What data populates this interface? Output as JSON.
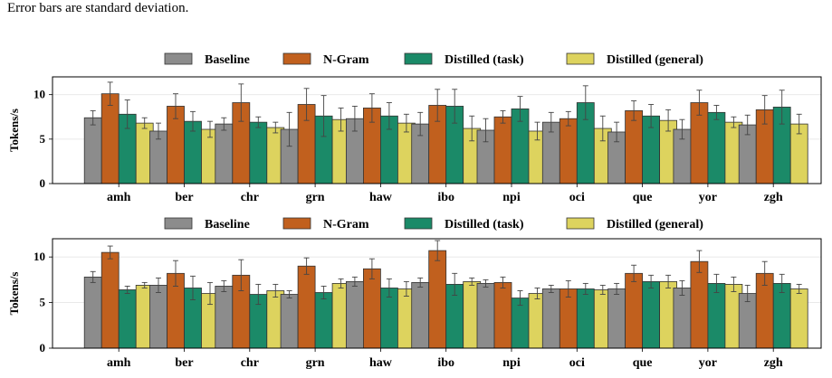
{
  "caption": "Error bars are standard deviation.",
  "colors": {
    "Baseline": "#8c8c8c",
    "N-Gram": "#c1601e",
    "Distilled (task)": "#1b8a68",
    "Distilled (general)": "#ddd35e"
  },
  "chart_data": [
    {
      "type": "bar",
      "ylabel": "Tokens/s",
      "ylim": [
        0,
        12
      ],
      "yticks": [
        0,
        5,
        10
      ],
      "grid": true,
      "legend_position": "top-center",
      "categories": [
        "amh",
        "ber",
        "chr",
        "grn",
        "haw",
        "ibo",
        "npi",
        "oci",
        "que",
        "yor",
        "zgh"
      ],
      "series": [
        {
          "name": "Baseline",
          "values": [
            7.4,
            5.9,
            6.7,
            6.1,
            7.3,
            6.7,
            6.0,
            6.9,
            5.8,
            6.1,
            6.6
          ],
          "errors": [
            0.8,
            0.9,
            0.7,
            1.9,
            1.4,
            1.3,
            1.3,
            1.1,
            1.1,
            1.1,
            1.1
          ]
        },
        {
          "name": "N-Gram",
          "values": [
            10.1,
            8.7,
            9.1,
            8.9,
            8.5,
            8.8,
            7.5,
            7.3,
            8.2,
            9.1,
            8.3
          ],
          "errors": [
            1.3,
            1.4,
            2.1,
            1.8,
            1.6,
            1.8,
            0.7,
            0.8,
            1.1,
            1.4,
            1.6
          ]
        },
        {
          "name": "Distilled (task)",
          "values": [
            7.8,
            7.0,
            6.9,
            7.6,
            7.6,
            8.7,
            8.4,
            9.1,
            7.6,
            8.0,
            8.6
          ],
          "errors": [
            1.6,
            1.1,
            0.6,
            2.3,
            1.5,
            1.9,
            1.4,
            1.9,
            1.3,
            0.8,
            1.9
          ]
        },
        {
          "name": "Distilled (general)",
          "values": [
            6.8,
            6.1,
            6.3,
            7.2,
            6.8,
            6.2,
            5.9,
            6.2,
            7.1,
            6.9,
            6.7
          ],
          "errors": [
            0.6,
            0.9,
            0.6,
            1.3,
            1.0,
            1.4,
            1.0,
            1.4,
            1.2,
            0.6,
            1.1
          ]
        }
      ]
    },
    {
      "type": "bar",
      "ylabel": "Tokens/s",
      "ylim": [
        0,
        12
      ],
      "yticks": [
        0,
        5,
        10
      ],
      "grid": true,
      "legend_position": "top-center",
      "categories": [
        "amh",
        "ber",
        "chr",
        "grn",
        "haw",
        "ibo",
        "npi",
        "oci",
        "que",
        "yor",
        "zgh"
      ],
      "series": [
        {
          "name": "Baseline",
          "values": [
            7.8,
            6.9,
            6.8,
            5.9,
            7.3,
            7.2,
            7.1,
            6.5,
            6.5,
            6.6,
            6.0
          ],
          "errors": [
            0.6,
            0.8,
            0.6,
            0.4,
            0.5,
            0.5,
            0.4,
            0.4,
            0.6,
            0.8,
            0.9
          ]
        },
        {
          "name": "N-Gram",
          "values": [
            10.5,
            8.2,
            8.0,
            9.0,
            8.7,
            10.7,
            7.2,
            6.5,
            8.2,
            9.5,
            8.2
          ],
          "errors": [
            0.7,
            1.4,
            1.7,
            0.9,
            1.1,
            1.1,
            0.6,
            0.9,
            0.9,
            1.2,
            1.3
          ]
        },
        {
          "name": "Distilled (task)",
          "values": [
            6.4,
            6.6,
            5.9,
            6.1,
            6.6,
            7.0,
            5.5,
            6.5,
            7.3,
            7.1,
            7.1
          ],
          "errors": [
            0.4,
            1.3,
            1.1,
            0.7,
            1.0,
            1.2,
            0.8,
            0.6,
            0.7,
            1.0,
            1.0
          ]
        },
        {
          "name": "Distilled (general)",
          "values": [
            6.9,
            6.0,
            6.3,
            7.1,
            6.5,
            7.3,
            6.0,
            6.4,
            7.3,
            7.0,
            6.5
          ],
          "errors": [
            0.3,
            1.2,
            0.7,
            0.5,
            0.8,
            0.4,
            0.6,
            0.5,
            0.7,
            0.8,
            0.5
          ]
        }
      ]
    }
  ]
}
